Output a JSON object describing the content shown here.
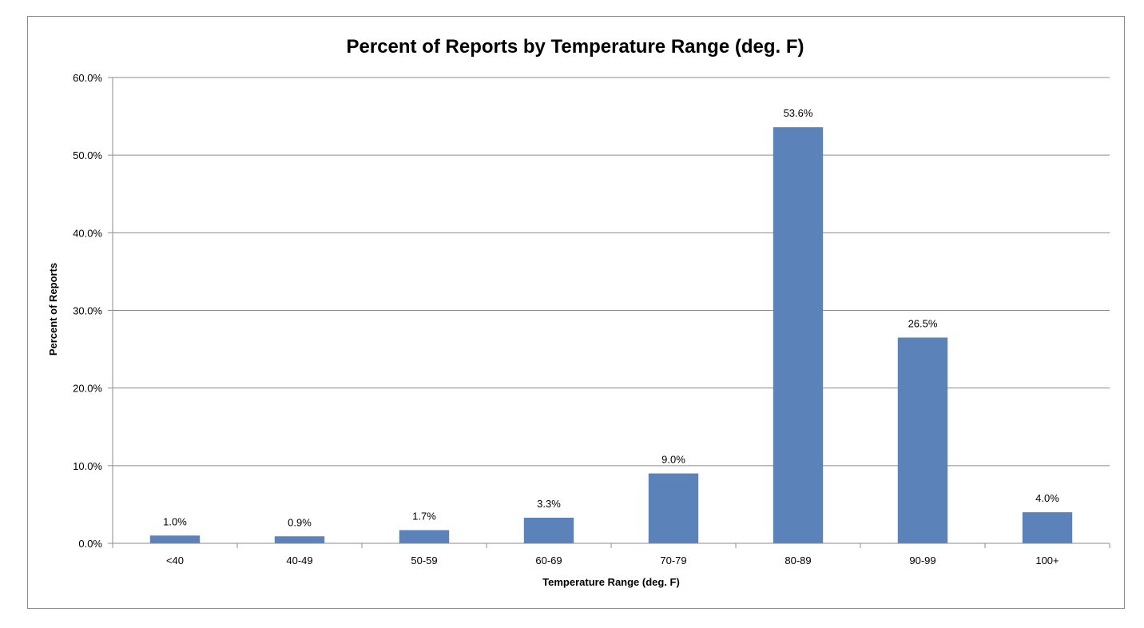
{
  "chart_data": {
    "type": "bar",
    "title": "Percent of Reports by Temperature Range (deg. F)",
    "xlabel": "Temperature Range (deg. F)",
    "ylabel": "Percent of Reports",
    "categories": [
      "<40",
      "40-49",
      "50-59",
      "60-69",
      "70-79",
      "80-89",
      "90-99",
      "100+"
    ],
    "values": [
      1.0,
      0.9,
      1.7,
      3.3,
      9.0,
      53.6,
      26.5,
      4.0
    ],
    "data_labels": [
      "1.0%",
      "0.9%",
      "1.7%",
      "3.3%",
      "9.0%",
      "53.6%",
      "26.5%",
      "4.0%"
    ],
    "ylim": [
      0,
      60
    ],
    "yticks": [
      0,
      10,
      20,
      30,
      40,
      50,
      60
    ],
    "ytick_labels": [
      "0.0%",
      "10.0%",
      "20.0%",
      "30.0%",
      "40.0%",
      "50.0%",
      "60.0%"
    ],
    "grid": true,
    "legend": "none",
    "bar_color": "#5b82b9",
    "grid_color": "#8c8c8c"
  }
}
